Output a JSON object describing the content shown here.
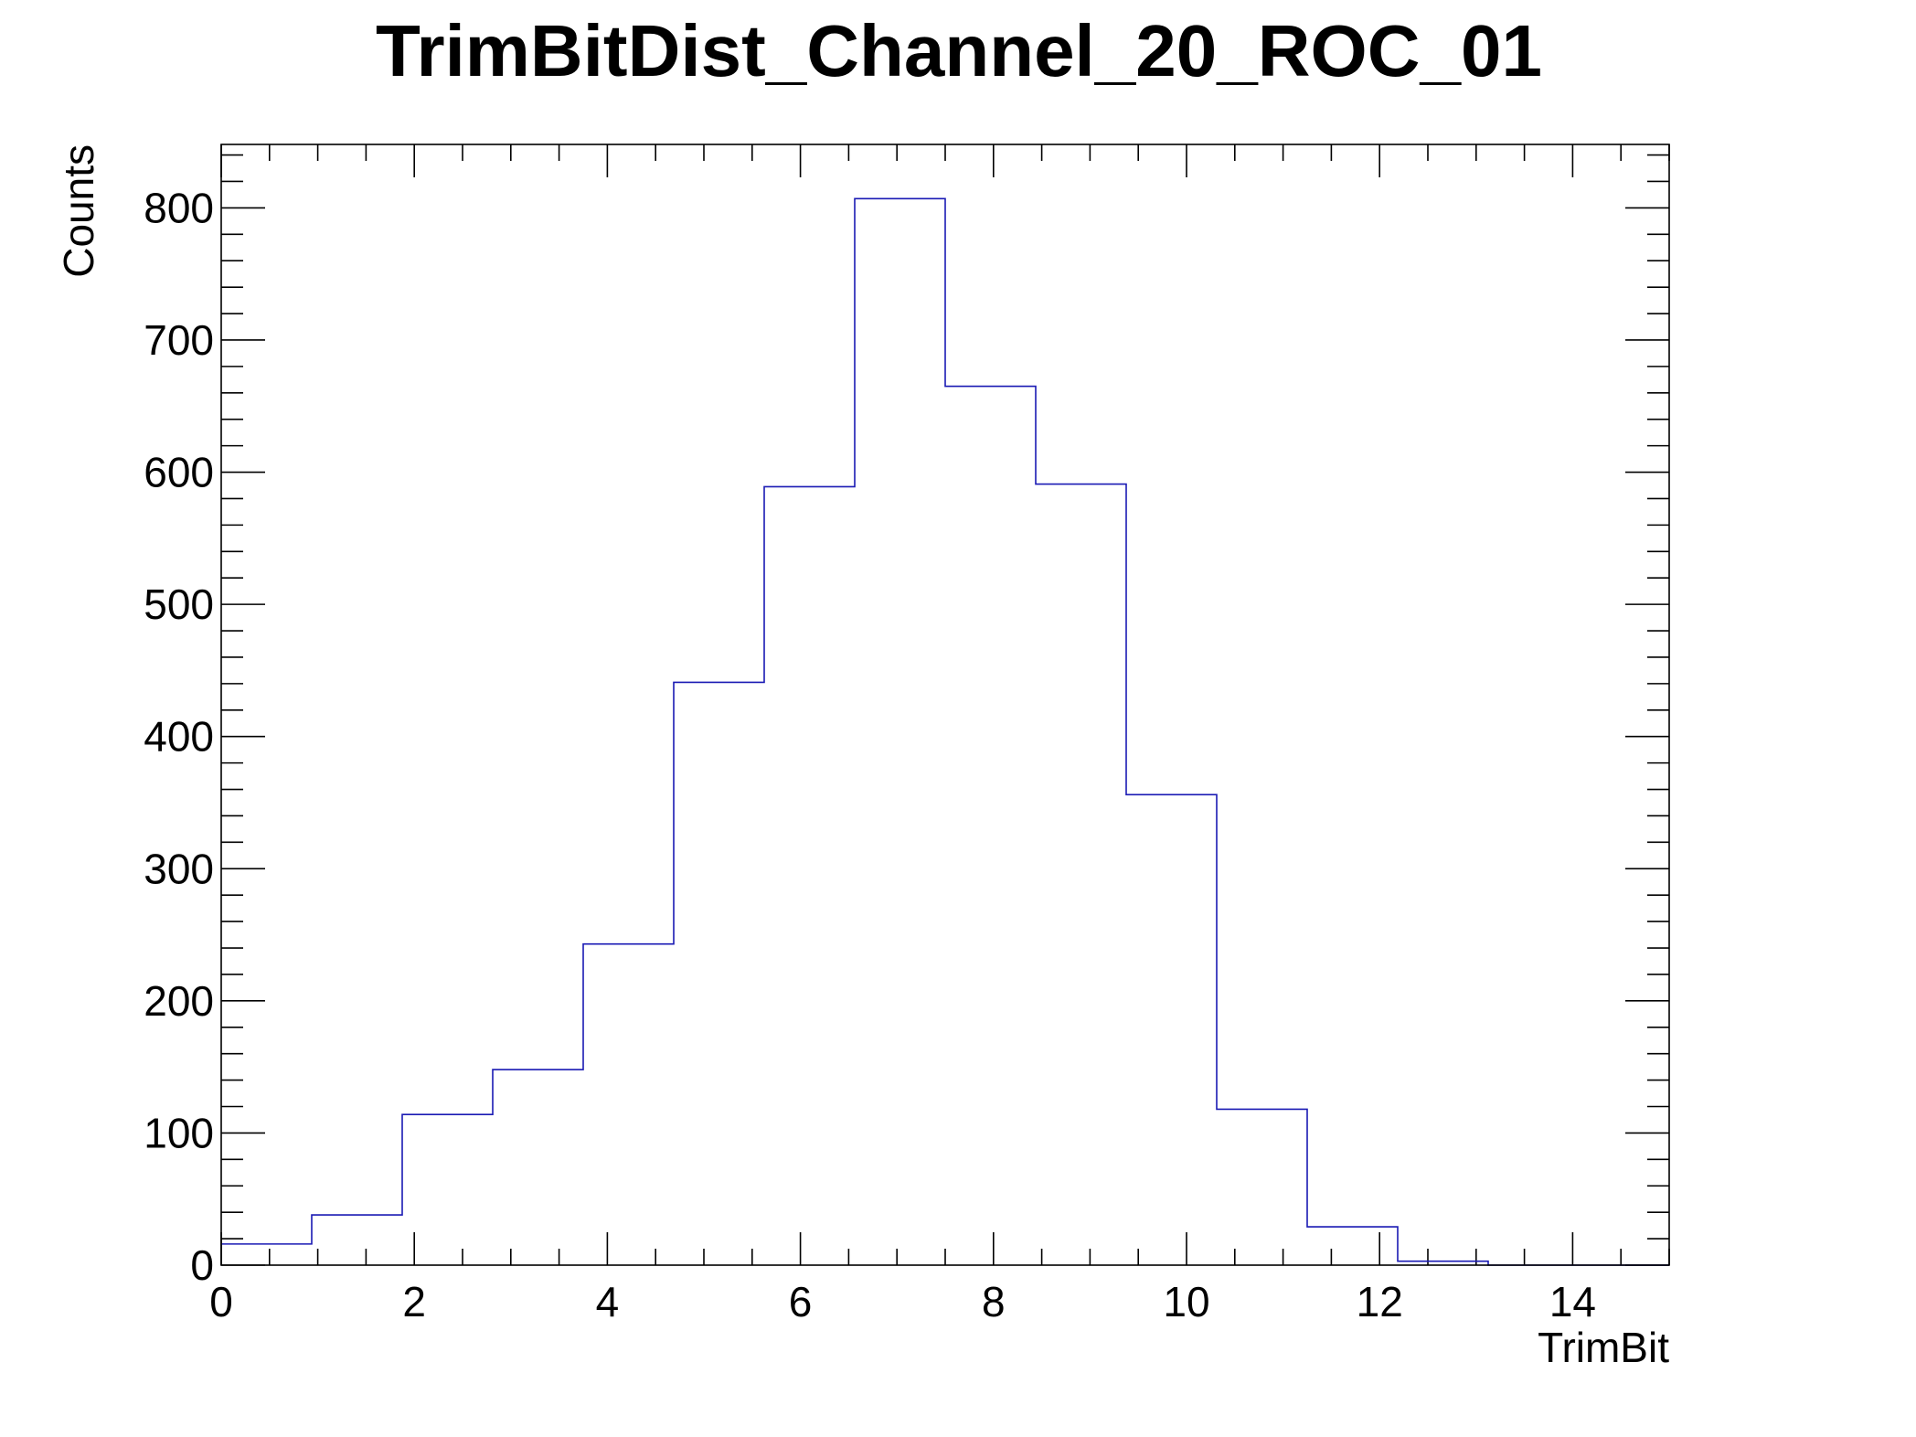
{
  "chart_data": {
    "type": "bar",
    "title": "TrimBitDist_Channel_20_ROC_01",
    "xlabel": "TrimBit",
    "ylabel": "Counts",
    "xlim": [
      0,
      15
    ],
    "ylim": [
      0,
      848
    ],
    "grid": false,
    "legend": "none",
    "x_ticks": [
      0,
      2,
      4,
      6,
      8,
      10,
      12,
      14
    ],
    "y_ticks": [
      0,
      100,
      200,
      300,
      400,
      500,
      600,
      700,
      800
    ],
    "bin_edges": [
      0,
      0.9375,
      1.875,
      2.8125,
      3.75,
      4.6875,
      5.625,
      6.5625,
      7.5,
      8.4375,
      9.375,
      10.3125,
      11.25,
      12.1875,
      13.125,
      14.0625,
      15
    ],
    "values": [
      16,
      38,
      114,
      148,
      243,
      441,
      589,
      807,
      665,
      591,
      356,
      118,
      29,
      3,
      0,
      0
    ],
    "series": [
      {
        "values": [
          16,
          38,
          114,
          148,
          243,
          441,
          589,
          807,
          665,
          591,
          356,
          118,
          29,
          3,
          0,
          0
        ],
        "color": "#1a1ab4"
      }
    ]
  }
}
